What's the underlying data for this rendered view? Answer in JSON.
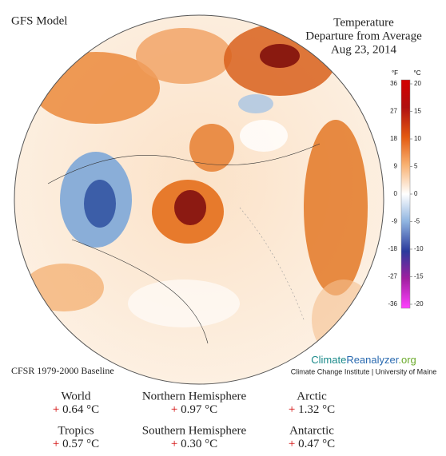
{
  "header": {
    "model": "GFS Model",
    "title_lines": [
      "Temperature",
      "Departure from Average",
      "Aug 23, 2014"
    ]
  },
  "legend": {
    "unit_f": "°F",
    "unit_c": "°C",
    "ticks_f": [
      36,
      27,
      18,
      9,
      0,
      -9,
      -18,
      -27,
      -36
    ],
    "ticks_c": [
      20,
      15,
      10,
      5,
      0,
      -5,
      -10,
      -15,
      -20
    ]
  },
  "footer": {
    "baseline": "CFSR 1979-2000 Baseline",
    "brand": [
      "Climate",
      "Reanalyzer",
      ".org"
    ],
    "institute": "Climate Change Institute | University of Maine"
  },
  "stats": [
    {
      "label": "World",
      "sign": "+",
      "value": "0.64 °C"
    },
    {
      "label": "Northern Hemisphere",
      "sign": "+",
      "value": "0.97 °C"
    },
    {
      "label": "Arctic",
      "sign": "+",
      "value": "1.32 °C"
    },
    {
      "label": "Tropics",
      "sign": "+",
      "value": "0.57 °C"
    },
    {
      "label": "Southern Hemisphere",
      "sign": "+",
      "value": "0.30 °C"
    },
    {
      "label": "Antarctic",
      "sign": "+",
      "value": "0.47 °C"
    }
  ]
}
